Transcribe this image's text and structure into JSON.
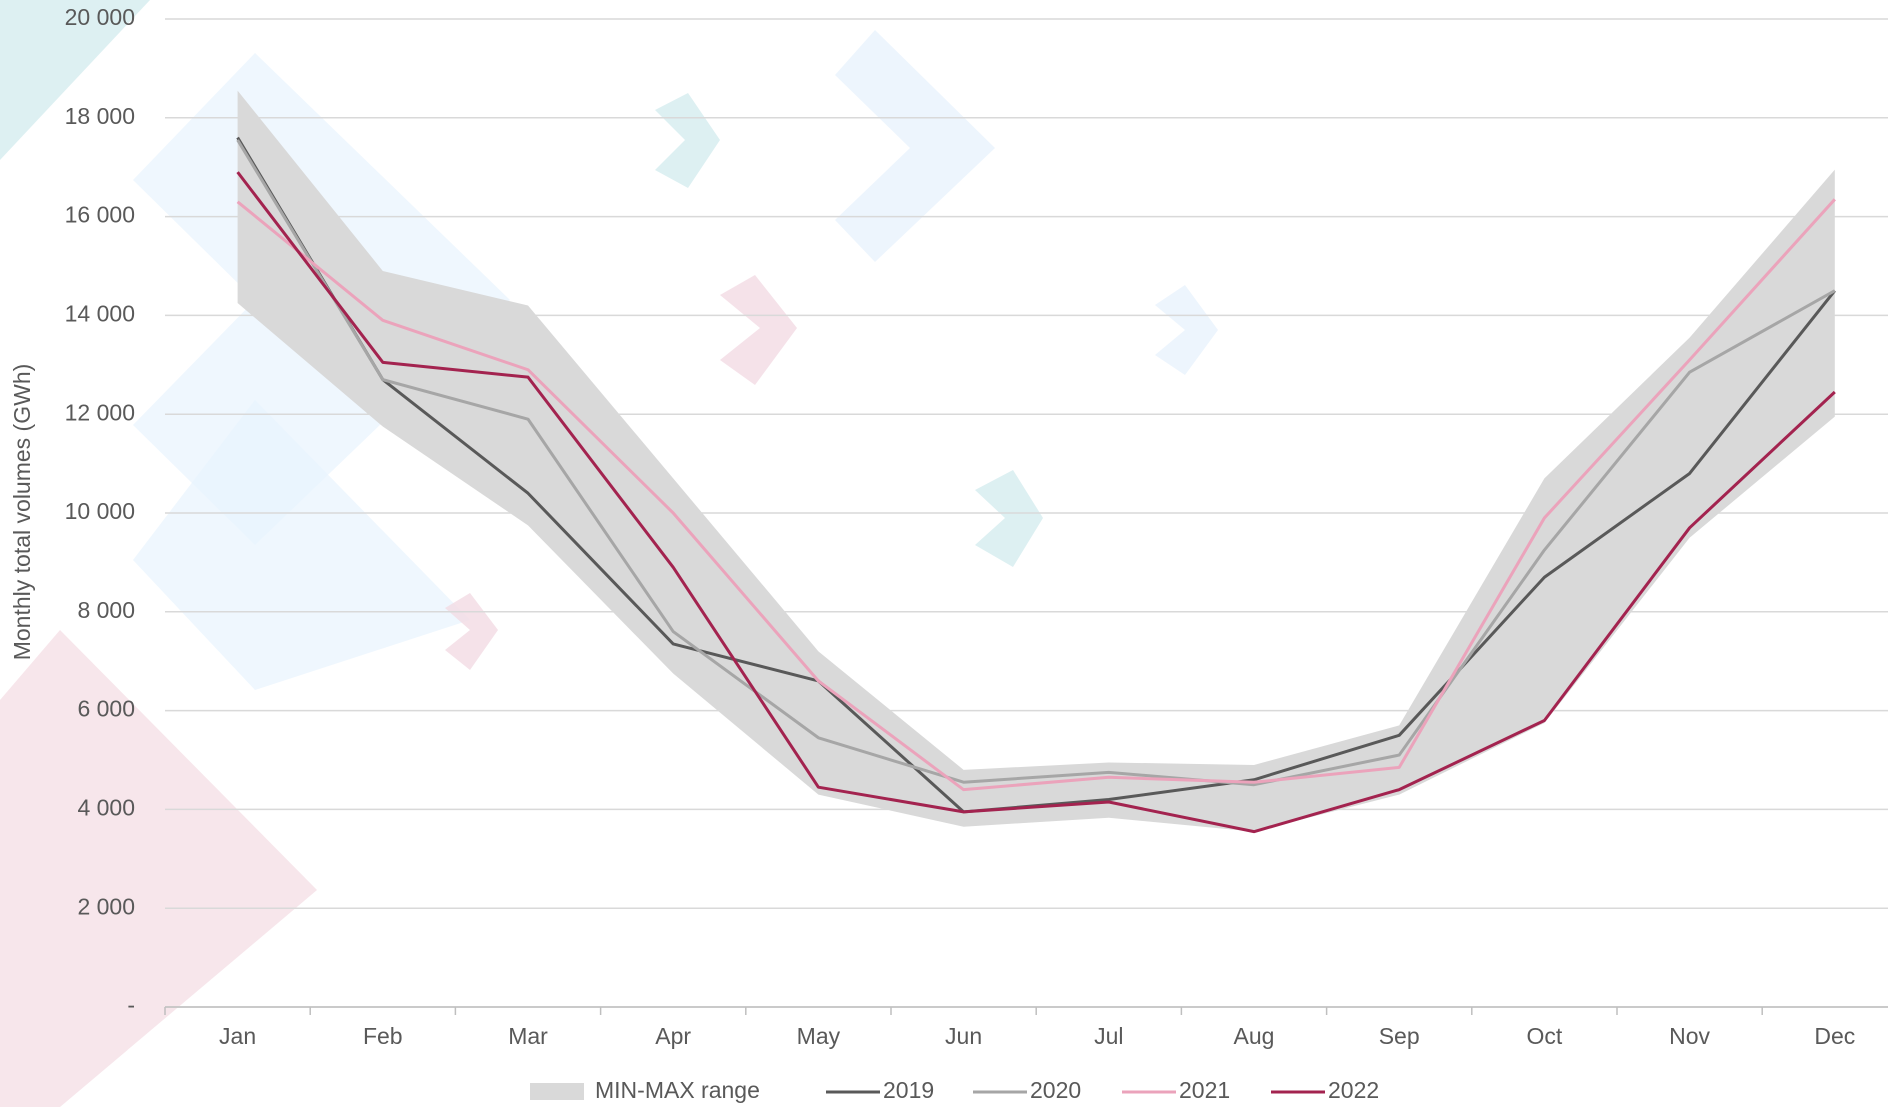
{
  "chart_data": {
    "type": "line",
    "y_label": "Monthly total volumes (GWh)",
    "categories": [
      "Jan",
      "Feb",
      "Mar",
      "Apr",
      "May",
      "Jun",
      "Jul",
      "Aug",
      "Sep",
      "Oct",
      "Nov",
      "Dec"
    ],
    "range": {
      "name": "MIN-MAX range",
      "color": "#d9d9d9",
      "min": [
        14250,
        11750,
        9750,
        6750,
        4300,
        3650,
        3830,
        3550,
        4300,
        5750,
        9500,
        11950
      ],
      "max": [
        18550,
        14900,
        14200,
        10700,
        7200,
        4800,
        4950,
        4900,
        5700,
        10700,
        13550,
        16950
      ]
    },
    "series": [
      {
        "name": "2019",
        "color": "#595959",
        "values": [
          17600,
          12700,
          10400,
          7350,
          6600,
          3950,
          4200,
          4600,
          5500,
          8700,
          10800,
          14500
        ]
      },
      {
        "name": "2020",
        "color": "#a6a6a6",
        "values": [
          17550,
          12700,
          11900,
          7600,
          5450,
          4550,
          4750,
          4500,
          5100,
          9250,
          12850,
          14500
        ]
      },
      {
        "name": "2021",
        "color": "#eba3bb",
        "values": [
          16300,
          13900,
          12900,
          10000,
          6600,
          4400,
          4650,
          4550,
          4850,
          9900,
          13100,
          16350
        ]
      },
      {
        "name": "2022",
        "color": "#a3234f",
        "values": [
          16900,
          13050,
          12750,
          8900,
          4450,
          3950,
          4150,
          3550,
          4400,
          5800,
          9700,
          12450
        ]
      }
    ],
    "ylim": [
      0,
      20000
    ],
    "yticks": [
      {
        "value": 0,
        "label": "-"
      },
      {
        "value": 2000,
        "label": "2 000"
      },
      {
        "value": 4000,
        "label": "4 000"
      },
      {
        "value": 6000,
        "label": "6 000"
      },
      {
        "value": 8000,
        "label": "8 000"
      },
      {
        "value": 10000,
        "label": "10 000"
      },
      {
        "value": 12000,
        "label": "12 000"
      },
      {
        "value": 14000,
        "label": "14 000"
      },
      {
        "value": 16000,
        "label": "16 000"
      },
      {
        "value": 18000,
        "label": "18 000"
      },
      {
        "value": 20000,
        "label": "20 000"
      }
    ],
    "grid": true
  }
}
